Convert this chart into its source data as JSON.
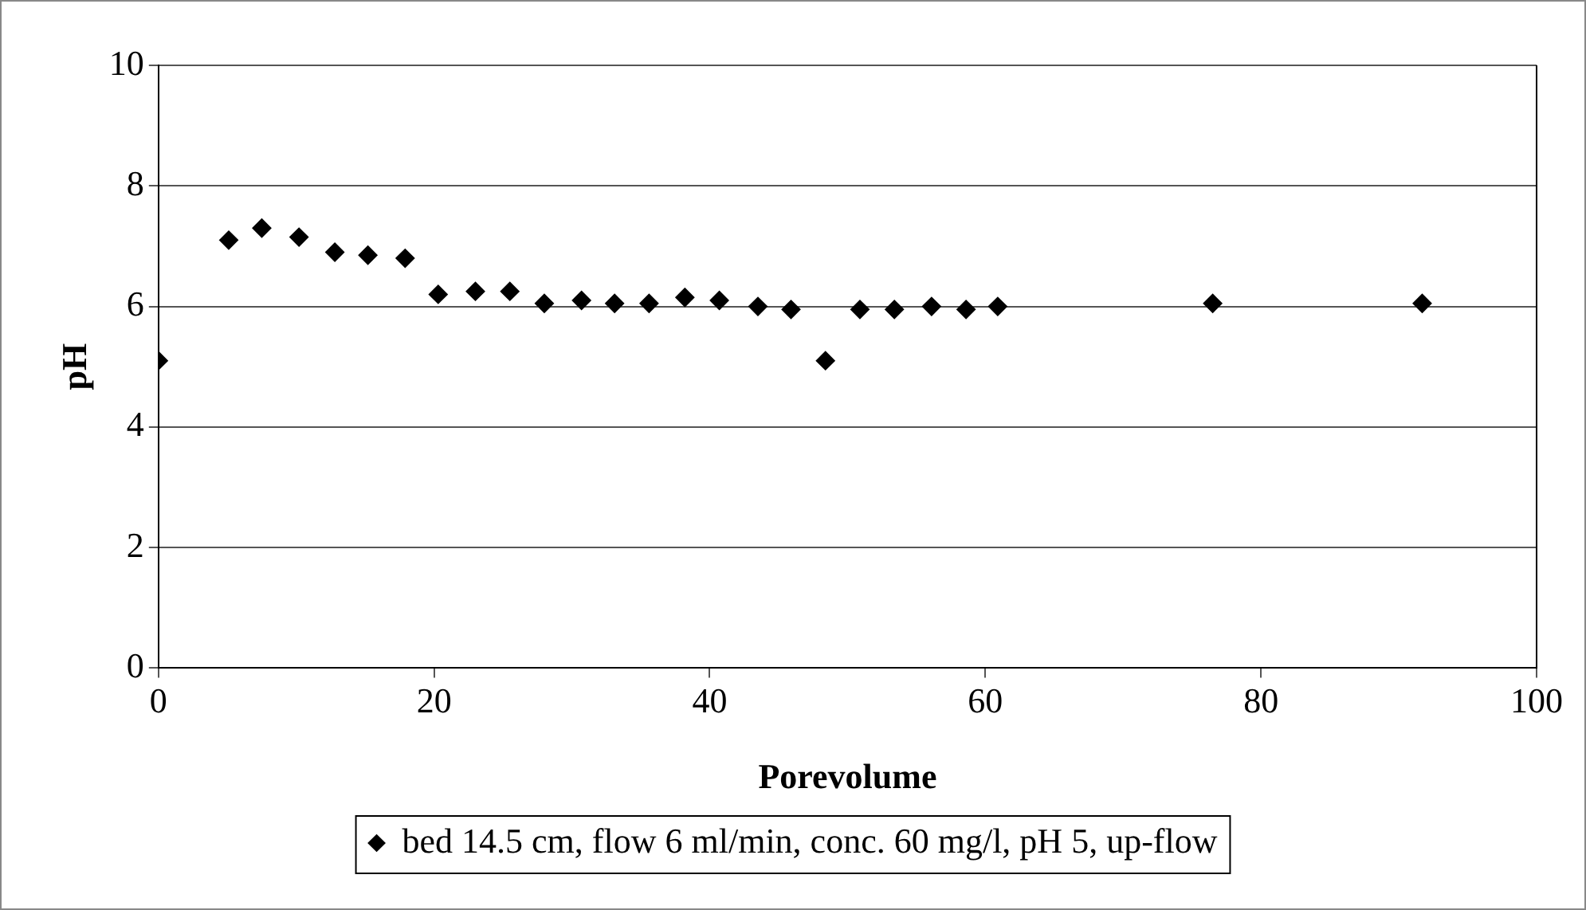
{
  "chart_data": {
    "type": "scatter",
    "xlabel": "Porevolume",
    "ylabel": "pH",
    "xlim": [
      0,
      100
    ],
    "xticks": [
      0,
      20,
      40,
      60,
      80,
      100
    ],
    "ylim": [
      0,
      10
    ],
    "yticks": [
      0,
      2,
      4,
      6,
      8,
      10
    ],
    "grid": "y",
    "legend": "bottom",
    "marker": "diamond",
    "series": [
      {
        "name": "bed 14.5 cm, flow 6 ml/min, conc. 60 mg/l, pH 5, up-flow",
        "color": "#000000",
        "x": [
          0,
          5.1,
          7.5,
          10.2,
          12.8,
          15.2,
          17.9,
          20.3,
          23,
          25.5,
          28,
          30.7,
          33.1,
          35.6,
          38.2,
          40.7,
          43.5,
          45.9,
          48.4,
          50.9,
          53.4,
          56.1,
          58.6,
          60.9,
          76.5,
          91.7
        ],
        "values": [
          5.1,
          7.1,
          7.3,
          7.15,
          6.9,
          6.85,
          6.8,
          6.2,
          6.25,
          6.25,
          6.05,
          6.1,
          6.05,
          6.05,
          6.15,
          6.1,
          6.0,
          5.95,
          5.1,
          5.95,
          5.95,
          6.0,
          5.95,
          6.0,
          6.05,
          6.05
        ]
      }
    ]
  }
}
